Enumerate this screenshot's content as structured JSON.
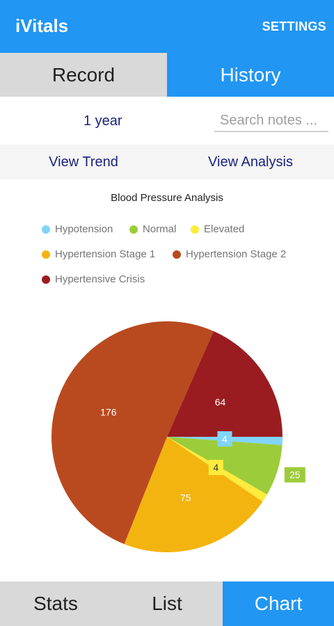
{
  "app": {
    "title": "iVitals",
    "settings_label": "SETTINGS"
  },
  "top_tabs": [
    {
      "label": "Record",
      "active": false
    },
    {
      "label": "History",
      "active": true
    }
  ],
  "filter": {
    "period": "1 year",
    "search_placeholder": "Search notes ..."
  },
  "view_buttons": {
    "trend": "View Trend",
    "analysis": "View Analysis"
  },
  "colors": {
    "accent": "#2196f3",
    "inactive_tab": "#d9d9d9",
    "link": "#1a237e"
  },
  "bottom_tabs": [
    {
      "label": "Stats",
      "active": false
    },
    {
      "label": "List",
      "active": false
    },
    {
      "label": "Chart",
      "active": true
    }
  ],
  "chart_data": {
    "type": "pie",
    "title": "Blood Pressure Analysis",
    "legend_position": "top",
    "slices": [
      {
        "label": "Hypotension",
        "value": 4,
        "color": "#81d4fa"
      },
      {
        "label": "Normal",
        "value": 25,
        "color": "#9ccc3a"
      },
      {
        "label": "Elevated",
        "value": 4,
        "color": "#ffeb3b"
      },
      {
        "label": "Hypertension Stage 1",
        "value": 75,
        "color": "#f4b40f"
      },
      {
        "label": "Hypertension Stage 2",
        "value": 176,
        "color": "#b94a1f"
      },
      {
        "label": "Hypertensive Crisis",
        "value": 64,
        "color": "#9a1c20"
      }
    ]
  }
}
